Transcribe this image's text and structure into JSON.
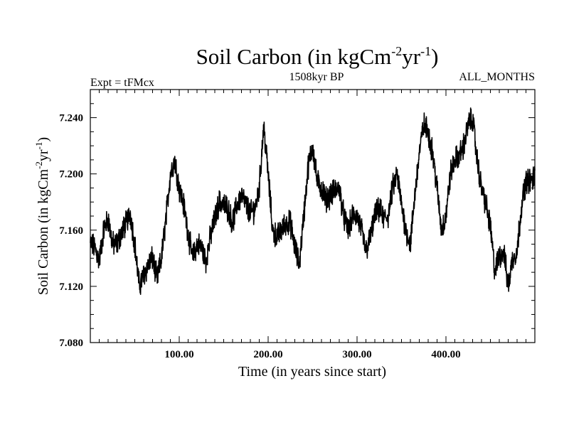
{
  "chart_data": {
    "type": "line",
    "title": {
      "main": "Soil Carbon (in kgCm",
      "exp1": "-2",
      "mid": "yr",
      "exp2": "-1",
      "end": ")"
    },
    "header": {
      "left": "Expt = tFMcx",
      "center": "1508kyr BP",
      "right": "ALL_MONTHS"
    },
    "xlabel": "Time (in years since start)",
    "ylabel": {
      "main": "Soil Carbon (in kgCm",
      "exp1": "-2",
      "mid": "yr",
      "exp2": "-1",
      "end": ")"
    },
    "xlim": [
      0,
      500
    ],
    "ylim": [
      7.08,
      7.26
    ],
    "x_ticks": [
      100,
      200,
      300,
      400
    ],
    "x_tick_labels": [
      "100.00",
      "200.00",
      "300.00",
      "400.00"
    ],
    "y_ticks": [
      7.08,
      7.12,
      7.16,
      7.2,
      7.24
    ],
    "y_tick_labels": [
      "7.080",
      "7.120",
      "7.160",
      "7.200",
      "7.240"
    ],
    "series": [
      {
        "name": "Soil Carbon",
        "color": "#000000",
        "noise_amplitude": 0.007,
        "x": [
          0,
          5,
          10,
          15,
          20,
          25,
          30,
          35,
          40,
          45,
          50,
          55,
          60,
          65,
          70,
          75,
          80,
          85,
          90,
          95,
          100,
          105,
          110,
          115,
          120,
          125,
          130,
          135,
          140,
          145,
          150,
          155,
          160,
          165,
          170,
          175,
          180,
          185,
          190,
          195,
          200,
          205,
          210,
          215,
          220,
          225,
          230,
          235,
          240,
          245,
          250,
          255,
          260,
          265,
          270,
          275,
          280,
          285,
          290,
          295,
          300,
          305,
          310,
          315,
          320,
          325,
          330,
          335,
          340,
          345,
          350,
          355,
          360,
          365,
          370,
          375,
          380,
          385,
          390,
          395,
          400,
          405,
          410,
          415,
          420,
          425,
          430,
          435,
          440,
          445,
          450,
          455,
          460,
          465,
          470,
          475,
          480,
          485,
          490,
          495,
          500
        ],
        "y": [
          7.15,
          7.148,
          7.138,
          7.16,
          7.168,
          7.15,
          7.15,
          7.158,
          7.165,
          7.172,
          7.15,
          7.12,
          7.128,
          7.135,
          7.14,
          7.125,
          7.14,
          7.168,
          7.2,
          7.21,
          7.19,
          7.178,
          7.158,
          7.14,
          7.15,
          7.148,
          7.138,
          7.155,
          7.168,
          7.18,
          7.178,
          7.175,
          7.165,
          7.178,
          7.185,
          7.178,
          7.172,
          7.175,
          7.19,
          7.235,
          7.2,
          7.16,
          7.155,
          7.16,
          7.165,
          7.165,
          7.148,
          7.135,
          7.17,
          7.205,
          7.22,
          7.195,
          7.19,
          7.182,
          7.185,
          7.188,
          7.19,
          7.17,
          7.16,
          7.17,
          7.17,
          7.16,
          7.145,
          7.155,
          7.17,
          7.175,
          7.168,
          7.17,
          7.19,
          7.2,
          7.178,
          7.16,
          7.15,
          7.185,
          7.215,
          7.235,
          7.23,
          7.215,
          7.19,
          7.16,
          7.17,
          7.2,
          7.21,
          7.213,
          7.22,
          7.235,
          7.24,
          7.21,
          7.19,
          7.178,
          7.162,
          7.13,
          7.142,
          7.145,
          7.12,
          7.14,
          7.145,
          7.178,
          7.195,
          7.195,
          7.198
        ]
      }
    ]
  }
}
